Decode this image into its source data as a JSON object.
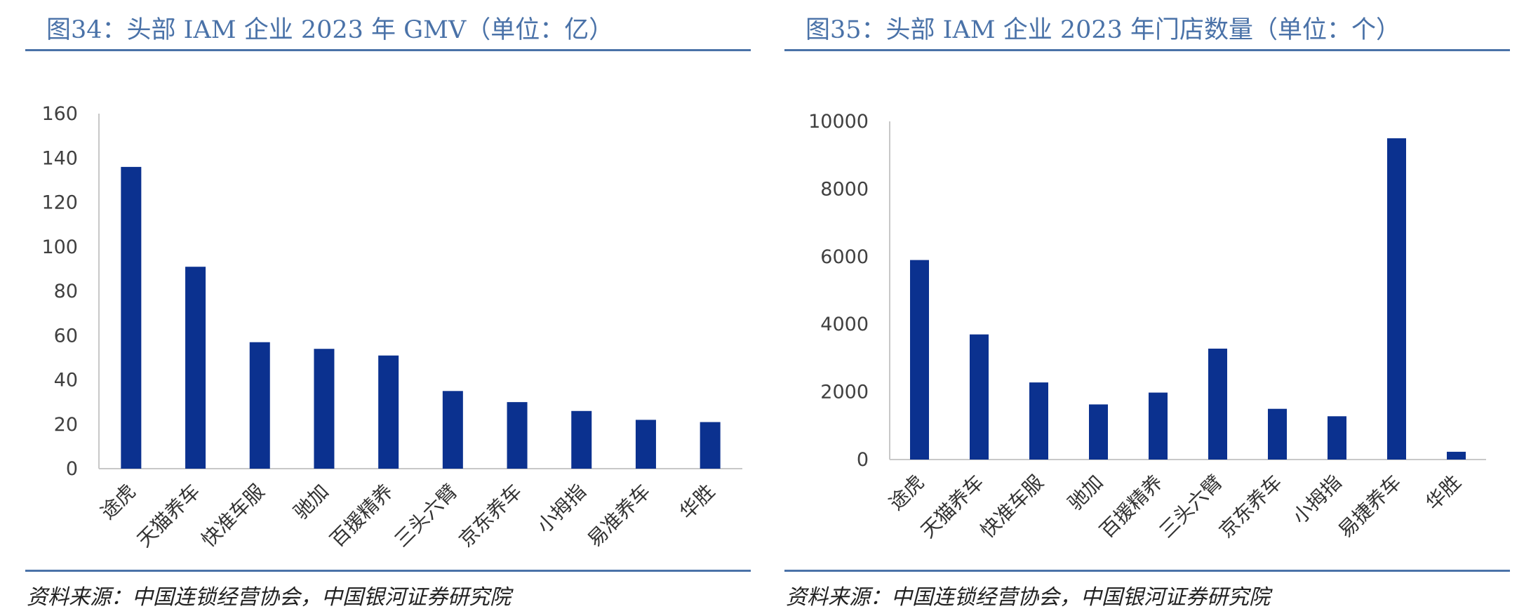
{
  "colors": {
    "bar": "#0b318f",
    "accent": "#4a72a8",
    "axis": "#c8c8c8"
  },
  "chart_data": [
    {
      "type": "bar",
      "title": "图34：头部 IAM 企业 2023 年 GMV（单位：亿）",
      "source": "资料来源：中国连锁经营协会，中国银河证券研究院",
      "categories": [
        "途虎",
        "天猫养车",
        "快准车服",
        "驰加",
        "百援精养",
        "三头六臂",
        "京东养车",
        "小拇指",
        "易准养车",
        "华胜"
      ],
      "values": [
        136,
        91,
        57,
        54,
        51,
        35,
        30,
        26,
        22,
        21
      ],
      "yticks": [
        "0",
        "20",
        "40",
        "60",
        "80",
        "100",
        "120",
        "140",
        "160"
      ],
      "ylim": [
        0,
        160
      ],
      "grid": false,
      "legend": "none"
    },
    {
      "type": "bar",
      "title": "图35：头部 IAM 企业 2023 年门店数量（单位：个）",
      "source": "资料来源：中国连锁经营协会，中国银河证券研究院",
      "categories": [
        "途虎",
        "天猫养车",
        "快准车服",
        "驰加",
        "百援精养",
        "三头六臂",
        "京东养车",
        "小拇指",
        "易捷养车",
        "华胜"
      ],
      "values": [
        5900,
        3700,
        2280,
        1630,
        1980,
        3280,
        1500,
        1280,
        9500,
        230
      ],
      "yticks": [
        "0",
        "2000",
        "4000",
        "6000",
        "8000",
        "10000"
      ],
      "ylim": [
        0,
        10000
      ],
      "grid": false,
      "legend": "none"
    }
  ]
}
